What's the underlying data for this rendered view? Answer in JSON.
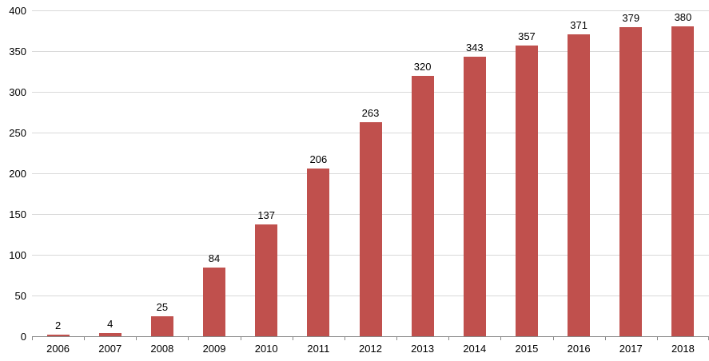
{
  "chart_data": {
    "type": "bar",
    "title": "",
    "xlabel": "",
    "ylabel": "",
    "categories": [
      "2006",
      "2007",
      "2008",
      "2009",
      "2010",
      "2011",
      "2012",
      "2013",
      "2014",
      "2015",
      "2016",
      "2017",
      "2018"
    ],
    "values": [
      2,
      4,
      25,
      84,
      137,
      206,
      263,
      320,
      343,
      357,
      371,
      379,
      380
    ],
    "data_labels": [
      "2",
      "4",
      "25",
      "84",
      "137",
      "206",
      "263",
      "320",
      "343",
      "357",
      "371",
      "379",
      "380"
    ],
    "ylim": [
      0,
      400
    ],
    "y_ticks": [
      0,
      50,
      100,
      150,
      200,
      250,
      300,
      350,
      400
    ],
    "grid": true,
    "legend": "none",
    "colors": {
      "bar": "#C0504D",
      "gridline": "#D9D9D9",
      "axis": "#898989",
      "text": "#000000",
      "background": "#FFFFFF"
    }
  }
}
